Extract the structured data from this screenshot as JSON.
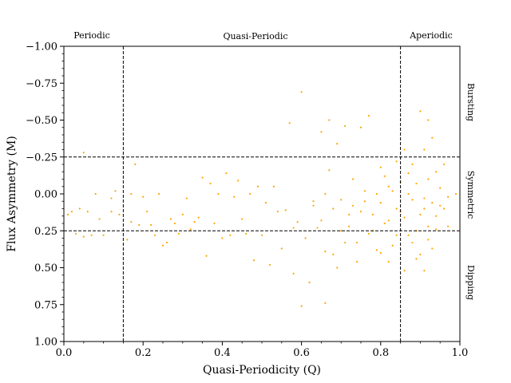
{
  "chart_data": {
    "type": "scatter",
    "xlabel": "Quasi-Periodicity (Q)",
    "ylabel": "Flux Asymmetry (M)",
    "xlim": [
      0.0,
      1.0
    ],
    "ylim": [
      1.0,
      -1.0
    ],
    "y_inverted": true,
    "grid": false,
    "point_color": "#FFA500",
    "xticks": [
      "0.0",
      "0.2",
      "0.4",
      "0.6",
      "0.8",
      "1.0"
    ],
    "yticks": [
      "−1.00",
      "−0.75",
      "−0.50",
      "−0.25",
      "0.00",
      "0.25",
      "0.50",
      "0.75",
      "1.00"
    ],
    "thresholds": {
      "x": [
        0.15,
        0.85
      ],
      "y": [
        -0.25,
        0.25
      ]
    },
    "top_labels": [
      "Periodic",
      "Quasi-Periodic",
      "Aperiodic"
    ],
    "right_labels": [
      "Bursting",
      "Symmetric",
      "Dipping"
    ],
    "points": [
      [
        0.01,
        0.14
      ],
      [
        0.02,
        0.12
      ],
      [
        0.03,
        0.27
      ],
      [
        0.04,
        0.1
      ],
      [
        0.05,
        0.29
      ],
      [
        0.05,
        -0.28
      ],
      [
        0.06,
        0.12
      ],
      [
        0.07,
        0.28
      ],
      [
        0.08,
        0.0
      ],
      [
        0.09,
        0.17
      ],
      [
        0.1,
        0.28
      ],
      [
        0.12,
        0.12
      ],
      [
        0.12,
        0.03
      ],
      [
        0.13,
        -0.02
      ],
      [
        0.14,
        0.14
      ],
      [
        0.16,
        0.31
      ],
      [
        0.17,
        0.0
      ],
      [
        0.17,
        0.19
      ],
      [
        0.18,
        -0.2
      ],
      [
        0.19,
        0.21
      ],
      [
        0.2,
        0.02
      ],
      [
        0.21,
        0.12
      ],
      [
        0.22,
        0.21
      ],
      [
        0.23,
        0.28
      ],
      [
        0.24,
        0.0
      ],
      [
        0.25,
        0.35
      ],
      [
        0.26,
        0.33
      ],
      [
        0.27,
        0.17
      ],
      [
        0.28,
        0.2
      ],
      [
        0.29,
        0.27
      ],
      [
        0.3,
        0.14
      ],
      [
        0.31,
        0.03
      ],
      [
        0.32,
        0.24
      ],
      [
        0.33,
        0.19
      ],
      [
        0.34,
        0.16
      ],
      [
        0.35,
        -0.11
      ],
      [
        0.36,
        0.42
      ],
      [
        0.37,
        -0.07
      ],
      [
        0.38,
        0.2
      ],
      [
        0.39,
        0.0
      ],
      [
        0.4,
        0.3
      ],
      [
        0.41,
        -0.14
      ],
      [
        0.42,
        0.28
      ],
      [
        0.43,
        0.02
      ],
      [
        0.44,
        -0.09
      ],
      [
        0.45,
        0.17
      ],
      [
        0.46,
        0.27
      ],
      [
        0.47,
        0.0
      ],
      [
        0.48,
        0.45
      ],
      [
        0.49,
        -0.05
      ],
      [
        0.5,
        0.28
      ],
      [
        0.51,
        0.06
      ],
      [
        0.52,
        0.48
      ],
      [
        0.53,
        -0.05
      ],
      [
        0.54,
        0.12
      ],
      [
        0.55,
        0.37
      ],
      [
        0.56,
        0.11
      ],
      [
        0.57,
        -0.48
      ],
      [
        0.58,
        0.23
      ],
      [
        0.59,
        0.19
      ],
      [
        0.6,
        -0.69
      ],
      [
        0.61,
        0.3
      ],
      [
        0.62,
        0.6
      ],
      [
        0.63,
        0.05
      ],
      [
        0.64,
        0.23
      ],
      [
        0.65,
        -0.42
      ],
      [
        0.66,
        0.39
      ],
      [
        0.66,
        0.74
      ],
      [
        0.67,
        -0.5
      ],
      [
        0.68,
        0.1
      ],
      [
        0.69,
        -0.34
      ],
      [
        0.7,
        0.25
      ],
      [
        0.71,
        -0.46
      ],
      [
        0.72,
        0.14
      ],
      [
        0.73,
        -0.1
      ],
      [
        0.74,
        0.33
      ],
      [
        0.75,
        -0.45
      ],
      [
        0.76,
        0.05
      ],
      [
        0.77,
        -0.53
      ],
      [
        0.78,
        0.25
      ],
      [
        0.79,
        0.0
      ],
      [
        0.8,
        -0.18
      ],
      [
        0.81,
        0.2
      ],
      [
        0.82,
        -0.05
      ],
      [
        0.83,
        0.35
      ],
      [
        0.84,
        -0.22
      ],
      [
        0.85,
        0.12
      ],
      [
        0.86,
        -0.3
      ],
      [
        0.87,
        0.0
      ],
      [
        0.88,
        -0.2
      ],
      [
        0.89,
        0.25
      ],
      [
        0.9,
        -0.56
      ],
      [
        0.91,
        0.1
      ],
      [
        0.92,
        -0.5
      ],
      [
        0.93,
        0.37
      ],
      [
        0.94,
        -0.15
      ],
      [
        0.95,
        0.08
      ],
      [
        0.96,
        -0.2
      ],
      [
        0.97,
        0.22
      ],
      [
        0.99,
        0.0
      ],
      [
        0.6,
        0.76
      ],
      [
        0.58,
        0.54
      ],
      [
        0.63,
        0.08
      ],
      [
        0.67,
        -0.16
      ],
      [
        0.68,
        0.41
      ],
      [
        0.69,
        0.5
      ],
      [
        0.7,
        0.04
      ],
      [
        0.72,
        0.22
      ],
      [
        0.74,
        0.46
      ],
      [
        0.75,
        0.12
      ],
      [
        0.76,
        -0.02
      ],
      [
        0.77,
        0.27
      ],
      [
        0.78,
        0.14
      ],
      [
        0.79,
        0.38
      ],
      [
        0.8,
        0.06
      ],
      [
        0.81,
        -0.12
      ],
      [
        0.82,
        0.18
      ],
      [
        0.83,
        -0.02
      ],
      [
        0.84,
        0.28
      ],
      [
        0.85,
        -0.08
      ],
      [
        0.86,
        0.16
      ],
      [
        0.86,
        0.52
      ],
      [
        0.87,
        -0.14
      ],
      [
        0.88,
        0.04
      ],
      [
        0.88,
        0.33
      ],
      [
        0.89,
        -0.07
      ],
      [
        0.9,
        0.14
      ],
      [
        0.9,
        0.41
      ],
      [
        0.91,
        -0.3
      ],
      [
        0.91,
        0.03
      ],
      [
        0.92,
        -0.1
      ],
      [
        0.92,
        0.22
      ],
      [
        0.93,
        0.06
      ],
      [
        0.93,
        -0.38
      ],
      [
        0.94,
        0.15
      ],
      [
        0.95,
        -0.04
      ],
      [
        0.96,
        0.1
      ],
      [
        0.65,
        0.18
      ],
      [
        0.66,
        0.0
      ],
      [
        0.71,
        0.33
      ],
      [
        0.73,
        0.08
      ],
      [
        0.8,
        0.4
      ],
      [
        0.82,
        0.46
      ],
      [
        0.84,
        0.1
      ],
      [
        0.87,
        0.28
      ],
      [
        0.89,
        0.44
      ],
      [
        0.91,
        0.52
      ],
      [
        0.92,
        0.31
      ],
      [
        0.94,
        0.24
      ],
      [
        0.97,
        0.02
      ]
    ]
  }
}
